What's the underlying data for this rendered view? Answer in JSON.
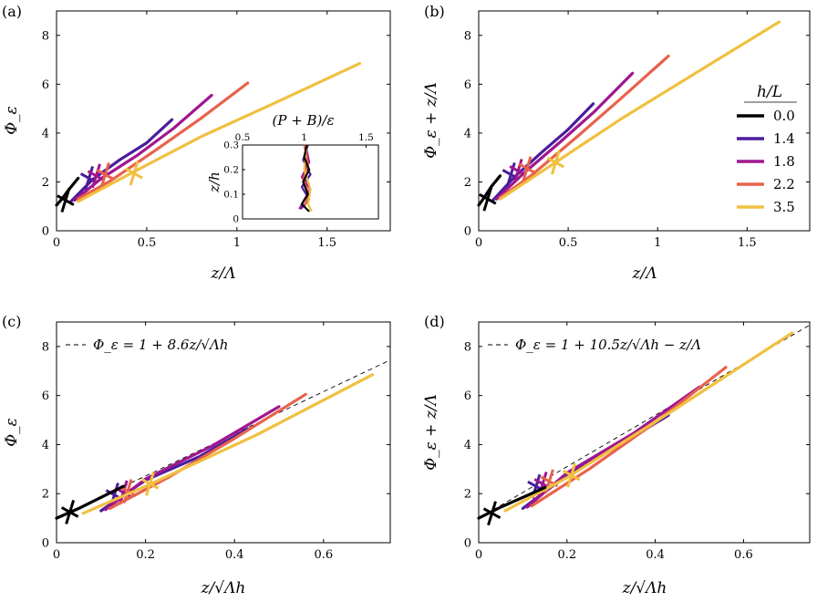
{
  "colors": {
    "h0.0": "#000000",
    "h1.4": "#4b1c9c",
    "h1.8": "#a0168f",
    "h2.2": "#e8624b",
    "h3.5": "#f0c040"
  },
  "legend": {
    "title": "h/L",
    "entries": [
      {
        "key": "h0.0",
        "label": "0.0"
      },
      {
        "key": "h1.4",
        "label": "1.4"
      },
      {
        "key": "h1.8",
        "label": "1.8"
      },
      {
        "key": "h2.2",
        "label": "2.2"
      },
      {
        "key": "h3.5",
        "label": "3.5"
      }
    ]
  },
  "chart_data": [
    {
      "panel": "(a)",
      "type": "line",
      "xlabel": "z/Λ",
      "ylabel": "Φ_ε",
      "xlim": [
        0,
        1.85
      ],
      "ylim": [
        0,
        9
      ],
      "xticks": [
        "0",
        "0.5",
        "1",
        "1.5"
      ],
      "yticks": [
        "0",
        "2",
        "4",
        "6",
        "8"
      ],
      "series": [
        {
          "key": "h0.0",
          "name": "0.0",
          "points": [
            [
              0,
              1.05
            ],
            [
              0.03,
              1.3
            ],
            [
              0.07,
              1.7
            ],
            [
              0.12,
              2.15
            ]
          ],
          "marker": [
            0.05,
            1.25
          ]
        },
        {
          "key": "h1.4",
          "name": "1.4",
          "points": [
            [
              0.08,
              1.2
            ],
            [
              0.2,
              2.1
            ],
            [
              0.35,
              2.9
            ],
            [
              0.5,
              3.6
            ],
            [
              0.64,
              4.55
            ]
          ],
          "marker": [
            0.18,
            2.15
          ]
        },
        {
          "key": "h1.8",
          "name": "1.8",
          "points": [
            [
              0.1,
              1.25
            ],
            [
              0.25,
              2.15
            ],
            [
              0.45,
              3.1
            ],
            [
              0.65,
              4.2
            ],
            [
              0.86,
              5.55
            ]
          ],
          "marker": [
            0.22,
            2.25
          ]
        },
        {
          "key": "h2.2",
          "name": "2.2",
          "points": [
            [
              0.12,
              1.3
            ],
            [
              0.3,
              2.05
            ],
            [
              0.55,
              3.3
            ],
            [
              0.8,
              4.6
            ],
            [
              1.06,
              6.05
            ]
          ],
          "marker": [
            0.27,
            2.3
          ]
        },
        {
          "key": "h3.5",
          "name": "3.5",
          "points": [
            [
              0.12,
              1.2
            ],
            [
              0.45,
              2.5
            ],
            [
              0.8,
              3.85
            ],
            [
              1.2,
              5.2
            ],
            [
              1.68,
              6.85
            ]
          ],
          "marker": [
            0.43,
            2.35
          ]
        }
      ]
    },
    {
      "panel": "(b)",
      "type": "line",
      "xlabel": "z/Λ",
      "ylabel": "Φ_ε + z/Λ",
      "xlim": [
        0,
        1.85
      ],
      "ylim": [
        0,
        9
      ],
      "xticks": [
        "0",
        "0.5",
        "1",
        "1.5"
      ],
      "yticks": [
        "0",
        "2",
        "4",
        "6",
        "8"
      ],
      "series": [
        {
          "key": "h0.0",
          "name": "0.0",
          "points": [
            [
              0,
              1.05
            ],
            [
              0.03,
              1.35
            ],
            [
              0.07,
              1.8
            ],
            [
              0.12,
              2.25
            ]
          ],
          "marker": [
            0.05,
            1.3
          ]
        },
        {
          "key": "h1.4",
          "name": "1.4",
          "points": [
            [
              0.08,
              1.25
            ],
            [
              0.2,
              2.2
            ],
            [
              0.35,
              3.2
            ],
            [
              0.5,
              4.15
            ],
            [
              0.64,
              5.2
            ]
          ],
          "marker": [
            0.18,
            2.3
          ]
        },
        {
          "key": "h1.8",
          "name": "1.8",
          "points": [
            [
              0.1,
              1.3
            ],
            [
              0.25,
              2.35
            ],
            [
              0.45,
              3.6
            ],
            [
              0.65,
              4.9
            ],
            [
              0.86,
              6.45
            ]
          ],
          "marker": [
            0.22,
            2.45
          ]
        },
        {
          "key": "h2.2",
          "name": "2.2",
          "points": [
            [
              0.12,
              1.35
            ],
            [
              0.3,
              2.3
            ],
            [
              0.55,
              3.85
            ],
            [
              0.8,
              5.45
            ],
            [
              1.06,
              7.15
            ]
          ],
          "marker": [
            0.27,
            2.55
          ]
        },
        {
          "key": "h3.5",
          "name": "3.5",
          "points": [
            [
              0.12,
              1.3
            ],
            [
              0.45,
              2.9
            ],
            [
              0.8,
              4.6
            ],
            [
              1.2,
              6.4
            ],
            [
              1.68,
              8.55
            ]
          ],
          "marker": [
            0.43,
            2.8
          ]
        }
      ]
    },
    {
      "panel": "(c)",
      "type": "line",
      "xlabel": "z/√Λh",
      "ylabel": "Φ_ε",
      "xlim": [
        0,
        0.75
      ],
      "ylim": [
        0,
        9
      ],
      "xticks": [
        "0",
        "0.2",
        "0.4",
        "0.6"
      ],
      "yticks": [
        "0",
        "2",
        "4",
        "6",
        "8"
      ],
      "annotation": "Φ_ε = 1 + 8.6z/√Λh",
      "fit": {
        "intercept": 1,
        "slope": 8.6
      },
      "series": [
        {
          "key": "h0.0",
          "name": "0.0",
          "points": [
            [
              0,
              1.0
            ],
            [
              0.05,
              1.4
            ],
            [
              0.1,
              1.85
            ],
            [
              0.15,
              2.3
            ]
          ],
          "marker": [
            0.03,
            1.25
          ]
        },
        {
          "key": "h1.4",
          "name": "1.4",
          "points": [
            [
              0.1,
              1.3
            ],
            [
              0.2,
              2.55
            ],
            [
              0.32,
              3.5
            ],
            [
              0.43,
              4.65
            ]
          ],
          "marker": [
            0.13,
            1.95
          ]
        },
        {
          "key": "h1.8",
          "name": "1.8",
          "points": [
            [
              0.11,
              1.35
            ],
            [
              0.2,
              2.6
            ],
            [
              0.35,
              3.95
            ],
            [
              0.5,
              5.55
            ]
          ],
          "marker": [
            0.15,
            2.05
          ]
        },
        {
          "key": "h2.2",
          "name": "2.2",
          "points": [
            [
              0.12,
              1.4
            ],
            [
              0.25,
              2.65
            ],
            [
              0.4,
              4.25
            ],
            [
              0.56,
              6.05
            ]
          ],
          "marker": [
            0.16,
            2.1
          ]
        },
        {
          "key": "h3.5",
          "name": "3.5",
          "points": [
            [
              0.06,
              1.2
            ],
            [
              0.2,
              2.3
            ],
            [
              0.45,
              4.4
            ],
            [
              0.71,
              6.85
            ]
          ],
          "marker": [
            0.21,
            2.4
          ]
        }
      ]
    },
    {
      "panel": "(d)",
      "type": "line",
      "xlabel": "z/√Λh",
      "ylabel": "Φ_ε + z/Λ",
      "xlim": [
        0,
        0.75
      ],
      "ylim": [
        0,
        9
      ],
      "xticks": [
        "0",
        "0.2",
        "0.4",
        "0.6"
      ],
      "yticks": [
        "0",
        "2",
        "4",
        "6",
        "8"
      ],
      "annotation": "Φ_ε = 1 + 10.5z/√Λh − z/Λ",
      "fit": {
        "intercept": 1,
        "slope": 10.5
      },
      "series": [
        {
          "key": "h0.0",
          "name": "0.0",
          "points": [
            [
              0,
              1.0
            ],
            [
              0.05,
              1.45
            ],
            [
              0.1,
              1.85
            ],
            [
              0.15,
              2.25
            ]
          ],
          "marker": [
            0.03,
            1.2
          ]
        },
        {
          "key": "h1.4",
          "name": "1.4",
          "points": [
            [
              0.1,
              1.4
            ],
            [
              0.2,
              2.75
            ],
            [
              0.32,
              4.0
            ],
            [
              0.43,
              5.2
            ]
          ],
          "marker": [
            0.13,
            2.3
          ]
        },
        {
          "key": "h1.8",
          "name": "1.8",
          "points": [
            [
              0.11,
              1.45
            ],
            [
              0.2,
              2.85
            ],
            [
              0.35,
              4.45
            ],
            [
              0.5,
              6.35
            ]
          ],
          "marker": [
            0.145,
            2.4
          ]
        },
        {
          "key": "h2.2",
          "name": "2.2",
          "points": [
            [
              0.12,
              1.5
            ],
            [
              0.25,
              3.0
            ],
            [
              0.4,
              4.9
            ],
            [
              0.56,
              7.15
            ]
          ],
          "marker": [
            0.16,
            2.5
          ]
        },
        {
          "key": "h3.5",
          "name": "3.5",
          "points": [
            [
              0.06,
              1.3
            ],
            [
              0.2,
              2.65
            ],
            [
              0.45,
              5.5
            ],
            [
              0.71,
              8.55
            ]
          ],
          "marker": [
            0.21,
            2.75
          ]
        }
      ]
    }
  ],
  "inset": {
    "title": "(P + B)/ε",
    "ylabel": "z/h",
    "xlim": [
      0.5,
      1.6
    ],
    "ylim": [
      0,
      0.3
    ],
    "xticks": [
      "0.5",
      "1",
      "1.5"
    ],
    "yticks": [
      "0",
      "0.1",
      "0.2",
      "0.3"
    ],
    "series": [
      {
        "key": "h0.0",
        "points": [
          [
            1.02,
            0.3
          ],
          [
            1.0,
            0.25
          ],
          [
            1.04,
            0.2
          ],
          [
            0.99,
            0.15
          ],
          [
            1.03,
            0.1
          ],
          [
            0.98,
            0.06
          ],
          [
            1.04,
            0.03
          ]
        ]
      },
      {
        "key": "h1.4",
        "points": [
          [
            1.03,
            0.3
          ],
          [
            0.99,
            0.24
          ],
          [
            1.05,
            0.18
          ],
          [
            0.98,
            0.13
          ],
          [
            1.04,
            0.08
          ],
          [
            0.97,
            0.04
          ]
        ]
      },
      {
        "key": "h1.8",
        "points": [
          [
            1.01,
            0.3
          ],
          [
            1.04,
            0.23
          ],
          [
            0.98,
            0.17
          ],
          [
            1.05,
            0.12
          ],
          [
            0.99,
            0.07
          ],
          [
            0.96,
            0.04
          ]
        ]
      },
      {
        "key": "h2.2",
        "points": [
          [
            1.0,
            0.3
          ],
          [
            1.03,
            0.22
          ],
          [
            0.99,
            0.16
          ],
          [
            1.04,
            0.1
          ],
          [
            1.0,
            0.05
          ]
        ]
      },
      {
        "key": "h3.5",
        "points": [
          [
            1.02,
            0.3
          ],
          [
            1.0,
            0.2
          ],
          [
            1.05,
            0.12
          ],
          [
            1.03,
            0.06
          ],
          [
            1.06,
            0.03
          ]
        ]
      }
    ]
  }
}
